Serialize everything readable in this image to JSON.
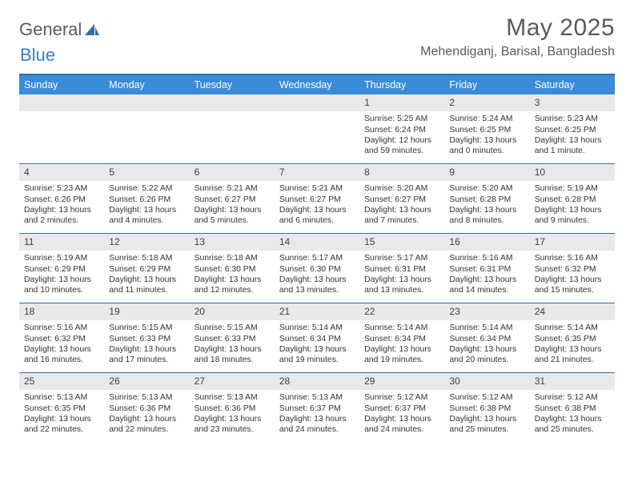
{
  "brand": {
    "word1": "General",
    "word2": "Blue"
  },
  "title": "May 2025",
  "location": "Mehendiganj, Barisal, Bangladesh",
  "colors": {
    "header_bar": "#3a8bd8",
    "rule": "#2f6fa8",
    "daynum_bg": "#e9e9e9",
    "text": "#333333",
    "muted": "#5a5a5a",
    "brand_blue": "#3a7fc4",
    "bg": "#ffffff"
  },
  "typography": {
    "title_fontsize": 30,
    "location_fontsize": 16,
    "dow_fontsize": 12.5,
    "daynum_fontsize": 12,
    "body_fontsize": 10.4
  },
  "days_of_week": [
    "Sunday",
    "Monday",
    "Tuesday",
    "Wednesday",
    "Thursday",
    "Friday",
    "Saturday"
  ],
  "weeks": [
    [
      null,
      null,
      null,
      null,
      {
        "n": "1",
        "sunrise": "5:25 AM",
        "sunset": "6:24 PM",
        "daylight": "12 hours and 59 minutes."
      },
      {
        "n": "2",
        "sunrise": "5:24 AM",
        "sunset": "6:25 PM",
        "daylight": "13 hours and 0 minutes."
      },
      {
        "n": "3",
        "sunrise": "5:23 AM",
        "sunset": "6:25 PM",
        "daylight": "13 hours and 1 minute."
      }
    ],
    [
      {
        "n": "4",
        "sunrise": "5:23 AM",
        "sunset": "6:26 PM",
        "daylight": "13 hours and 2 minutes."
      },
      {
        "n": "5",
        "sunrise": "5:22 AM",
        "sunset": "6:26 PM",
        "daylight": "13 hours and 4 minutes."
      },
      {
        "n": "6",
        "sunrise": "5:21 AM",
        "sunset": "6:27 PM",
        "daylight": "13 hours and 5 minutes."
      },
      {
        "n": "7",
        "sunrise": "5:21 AM",
        "sunset": "6:27 PM",
        "daylight": "13 hours and 6 minutes."
      },
      {
        "n": "8",
        "sunrise": "5:20 AM",
        "sunset": "6:27 PM",
        "daylight": "13 hours and 7 minutes."
      },
      {
        "n": "9",
        "sunrise": "5:20 AM",
        "sunset": "6:28 PM",
        "daylight": "13 hours and 8 minutes."
      },
      {
        "n": "10",
        "sunrise": "5:19 AM",
        "sunset": "6:28 PM",
        "daylight": "13 hours and 9 minutes."
      }
    ],
    [
      {
        "n": "11",
        "sunrise": "5:19 AM",
        "sunset": "6:29 PM",
        "daylight": "13 hours and 10 minutes."
      },
      {
        "n": "12",
        "sunrise": "5:18 AM",
        "sunset": "6:29 PM",
        "daylight": "13 hours and 11 minutes."
      },
      {
        "n": "13",
        "sunrise": "5:18 AM",
        "sunset": "6:30 PM",
        "daylight": "13 hours and 12 minutes."
      },
      {
        "n": "14",
        "sunrise": "5:17 AM",
        "sunset": "6:30 PM",
        "daylight": "13 hours and 13 minutes."
      },
      {
        "n": "15",
        "sunrise": "5:17 AM",
        "sunset": "6:31 PM",
        "daylight": "13 hours and 13 minutes."
      },
      {
        "n": "16",
        "sunrise": "5:16 AM",
        "sunset": "6:31 PM",
        "daylight": "13 hours and 14 minutes."
      },
      {
        "n": "17",
        "sunrise": "5:16 AM",
        "sunset": "6:32 PM",
        "daylight": "13 hours and 15 minutes."
      }
    ],
    [
      {
        "n": "18",
        "sunrise": "5:16 AM",
        "sunset": "6:32 PM",
        "daylight": "13 hours and 16 minutes."
      },
      {
        "n": "19",
        "sunrise": "5:15 AM",
        "sunset": "6:33 PM",
        "daylight": "13 hours and 17 minutes."
      },
      {
        "n": "20",
        "sunrise": "5:15 AM",
        "sunset": "6:33 PM",
        "daylight": "13 hours and 18 minutes."
      },
      {
        "n": "21",
        "sunrise": "5:14 AM",
        "sunset": "6:34 PM",
        "daylight": "13 hours and 19 minutes."
      },
      {
        "n": "22",
        "sunrise": "5:14 AM",
        "sunset": "6:34 PM",
        "daylight": "13 hours and 19 minutes."
      },
      {
        "n": "23",
        "sunrise": "5:14 AM",
        "sunset": "6:34 PM",
        "daylight": "13 hours and 20 minutes."
      },
      {
        "n": "24",
        "sunrise": "5:14 AM",
        "sunset": "6:35 PM",
        "daylight": "13 hours and 21 minutes."
      }
    ],
    [
      {
        "n": "25",
        "sunrise": "5:13 AM",
        "sunset": "6:35 PM",
        "daylight": "13 hours and 22 minutes."
      },
      {
        "n": "26",
        "sunrise": "5:13 AM",
        "sunset": "6:36 PM",
        "daylight": "13 hours and 22 minutes."
      },
      {
        "n": "27",
        "sunrise": "5:13 AM",
        "sunset": "6:36 PM",
        "daylight": "13 hours and 23 minutes."
      },
      {
        "n": "28",
        "sunrise": "5:13 AM",
        "sunset": "6:37 PM",
        "daylight": "13 hours and 24 minutes."
      },
      {
        "n": "29",
        "sunrise": "5:12 AM",
        "sunset": "6:37 PM",
        "daylight": "13 hours and 24 minutes."
      },
      {
        "n": "30",
        "sunrise": "5:12 AM",
        "sunset": "6:38 PM",
        "daylight": "13 hours and 25 minutes."
      },
      {
        "n": "31",
        "sunrise": "5:12 AM",
        "sunset": "6:38 PM",
        "daylight": "13 hours and 25 minutes."
      }
    ]
  ],
  "labels": {
    "sunrise": "Sunrise: ",
    "sunset": "Sunset: ",
    "daylight": "Daylight: "
  }
}
